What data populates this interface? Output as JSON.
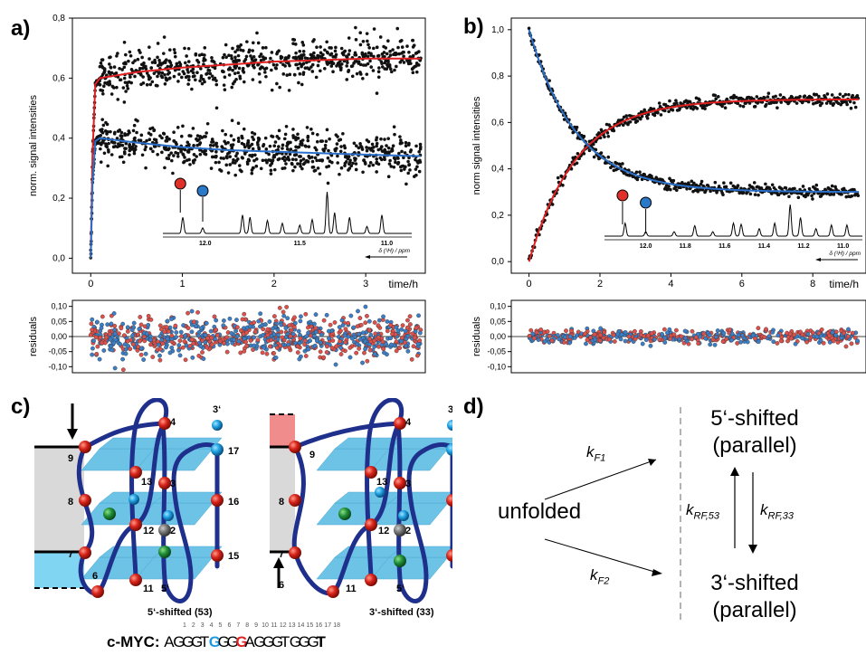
{
  "panel_labels": {
    "a": "a)",
    "b": "b)",
    "c": "c)",
    "d": "d)"
  },
  "colors": {
    "red_fit": "#e02020",
    "blue_fit": "#2a6fc9",
    "red_dot": "#e0302a",
    "blue_dot": "#2a78c8",
    "strand": "#1f2f8c",
    "tetrad": "#6ec4e8",
    "grey_box": "#d8d8d8",
    "pink_box": "#f08c8c",
    "cyan_box": "#7fd4f0"
  },
  "chart_data": [
    {
      "panel": "a",
      "type": "scatter",
      "ylabel": "norm. signal intensities",
      "xlabel": "time/h",
      "xlim": [
        -0.2,
        3.65
      ],
      "ylim": [
        -0.05,
        0.8
      ],
      "xticks": [
        0,
        1,
        2,
        3
      ],
      "xtick_labels": [
        "0",
        "1",
        "2",
        "3"
      ],
      "yticks": [
        0.0,
        0.2,
        0.4,
        0.6,
        0.8
      ],
      "ytick_labels": [
        "0,0",
        "0,2",
        "0,4",
        "0,6",
        "0,8"
      ],
      "series": [
        {
          "color": "red",
          "fit_points": [
            [
              0,
              0.0
            ],
            [
              0.02,
              0.35
            ],
            [
              0.05,
              0.58
            ],
            [
              0.1,
              0.6
            ],
            [
              0.5,
              0.62
            ],
            [
              1.0,
              0.635
            ],
            [
              1.5,
              0.645
            ],
            [
              2.0,
              0.655
            ],
            [
              2.5,
              0.66
            ],
            [
              3.0,
              0.665
            ],
            [
              3.6,
              0.665
            ]
          ],
          "scatter_center": [
            [
              0.1,
              0.605
            ],
            [
              1.0,
              0.635
            ],
            [
              2.0,
              0.655
            ],
            [
              3.0,
              0.66
            ],
            [
              3.6,
              0.665
            ]
          ],
          "scatter_spread": 0.035
        },
        {
          "color": "blue",
          "fit_points": [
            [
              0,
              0.0
            ],
            [
              0.02,
              0.25
            ],
            [
              0.05,
              0.39
            ],
            [
              0.1,
              0.4
            ],
            [
              0.5,
              0.385
            ],
            [
              1.0,
              0.37
            ],
            [
              1.5,
              0.36
            ],
            [
              2.0,
              0.355
            ],
            [
              2.5,
              0.35
            ],
            [
              3.0,
              0.345
            ],
            [
              3.6,
              0.34
            ]
          ],
          "scatter_center": [
            [
              0.1,
              0.4
            ],
            [
              1.0,
              0.37
            ],
            [
              2.0,
              0.355
            ],
            [
              3.0,
              0.345
            ],
            [
              3.6,
              0.34
            ]
          ],
          "scatter_spread": 0.035
        }
      ],
      "residuals": {
        "ylabel": "residuals",
        "yticks": [
          "0,10",
          "0,05",
          "0,00",
          "-0,05",
          "-0,10"
        ],
        "spread": 0.035
      },
      "inset": {
        "axis_label": "δ (¹H) / ppm",
        "ticks": [
          "12.0",
          "11.5",
          "11.0"
        ]
      }
    },
    {
      "panel": "b",
      "type": "scatter",
      "ylabel": "norm signal intensities",
      "xlabel": "time/h",
      "xlim": [
        -0.5,
        9.5
      ],
      "ylim": [
        -0.05,
        1.05
      ],
      "xticks": [
        0,
        2,
        4,
        6,
        8
      ],
      "xtick_labels": [
        "0",
        "2",
        "4",
        "6",
        "8"
      ],
      "yticks": [
        0.0,
        0.2,
        0.4,
        0.6,
        0.8,
        1.0
      ],
      "ytick_labels": [
        "0,0",
        "0,2",
        "0,4",
        "0,6",
        "0,8",
        "1,0"
      ],
      "series": [
        {
          "color": "red",
          "model": "rise",
          "plateau": 0.7,
          "rate": 0.75,
          "offset": 0.0
        },
        {
          "color": "blue",
          "model": "decay",
          "plateau": 0.3,
          "rate": 0.75,
          "start": 1.0
        }
      ],
      "residuals": {
        "ylabel": "residuals",
        "yticks": [
          "0,10",
          "0,05",
          "0,00",
          "-0,05",
          "-0,10"
        ],
        "spread": 0.012
      },
      "inset": {
        "axis_label": "δ (¹H) / ppm",
        "ticks": [
          "12.0",
          "11.8",
          "11.6",
          "11.4",
          "11.2",
          "11.0"
        ]
      }
    }
  ],
  "panel_c": {
    "left_caption": "5‘-shifted (53)",
    "right_caption": "3‘-shifted (33)",
    "numbers": [
      "3‘",
      "4",
      "9",
      "17",
      "13",
      "3",
      "8",
      "16",
      "12",
      "2",
      "7",
      "15",
      "6",
      "11",
      "5‘"
    ]
  },
  "sequence": {
    "label": "c-MYC:",
    "numbers": [
      "1",
      "2",
      "3",
      "4",
      "5",
      "6",
      "7",
      "8",
      "9",
      "10",
      "11",
      "12",
      "13",
      "14",
      "15",
      "16",
      "17",
      "18"
    ],
    "letters": [
      "A",
      "G",
      "G",
      "G",
      "T",
      "G",
      "G",
      "G",
      "G",
      "A",
      "G",
      "G",
      "G",
      "T",
      "G",
      "G",
      "G",
      "T"
    ]
  },
  "panel_d": {
    "unfolded": "unfolded",
    "top_state_line1": "5‘-shifted",
    "top_state_line2": "(parallel)",
    "bottom_state_line1": "3‘-shifted",
    "bottom_state_line2": "(parallel)",
    "kF1": "k",
    "kF1_sub": "F1",
    "kF2": "k",
    "kF2_sub": "F2",
    "kRF53": "k",
    "kRF53_sub": "RF,53",
    "kRF33": "k",
    "kRF33_sub": "RF,33"
  }
}
